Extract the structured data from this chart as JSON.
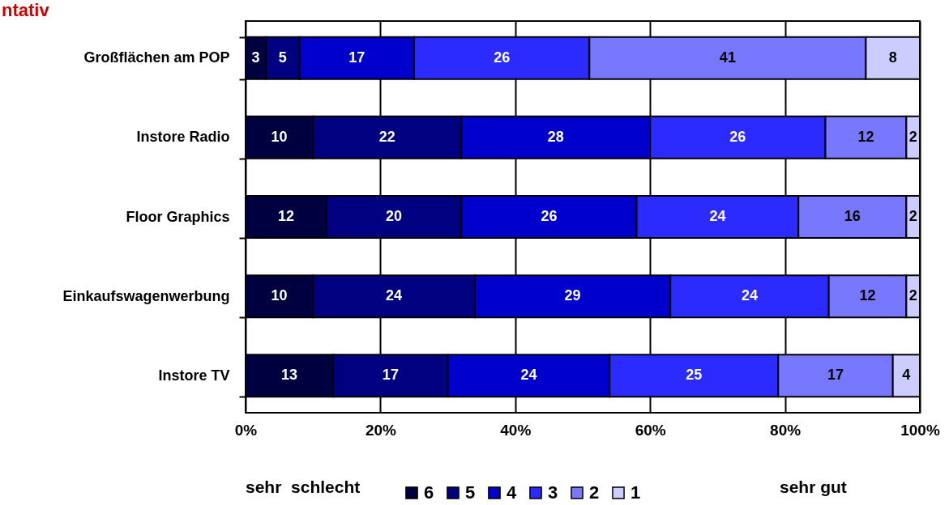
{
  "chart_data": {
    "type": "bar",
    "orientation": "horizontal",
    "stacked": true,
    "title": "ntativ",
    "categories": [
      "Großflächen am POP",
      "Instore Radio",
      "Floor Graphics",
      "Einkaufswagenwerbung",
      "Instore TV"
    ],
    "series": [
      {
        "name": "6",
        "color": "#000040",
        "values": [
          3,
          10,
          12,
          10,
          13
        ],
        "value_labels": [
          "3",
          "10",
          "12",
          "10",
          "13"
        ]
      },
      {
        "name": "5",
        "color": "#000080",
        "values": [
          5,
          22,
          20,
          24,
          17
        ],
        "value_labels": [
          "5",
          "22",
          "20",
          "24",
          "17"
        ]
      },
      {
        "name": "4",
        "color": "#0000cc",
        "values": [
          17,
          28,
          26,
          29,
          24
        ],
        "value_labels": [
          "17",
          "28",
          "26",
          "29",
          "24"
        ]
      },
      {
        "name": "3",
        "color": "#2b2bff",
        "values": [
          26,
          26,
          24,
          23.5,
          25
        ],
        "value_labels": [
          "26",
          "26",
          "24",
          "24",
          "25"
        ]
      },
      {
        "name": "2",
        "color": "#7878ff",
        "values": [
          41,
          12,
          16,
          11.5,
          17
        ],
        "value_labels": [
          "41",
          "12",
          "16",
          "12",
          "17"
        ]
      },
      {
        "name": "1",
        "color": "#ccccff",
        "values": [
          8,
          2,
          2,
          2,
          4
        ],
        "value_labels": [
          "8",
          "2",
          "2",
          "2",
          "4"
        ]
      }
    ],
    "xlim": [
      0,
      100
    ],
    "xticks": [
      {
        "value": 0,
        "label": "0%"
      },
      {
        "value": 20,
        "label": "20%"
      },
      {
        "value": 40,
        "label": "40%"
      },
      {
        "value": 60,
        "label": "60%"
      },
      {
        "value": 80,
        "label": "80%"
      },
      {
        "value": 100,
        "label": "100%"
      }
    ],
    "grid": "x",
    "legend": "bottom",
    "annotations": [
      "sehr  schlecht",
      "sehr gut"
    ]
  }
}
